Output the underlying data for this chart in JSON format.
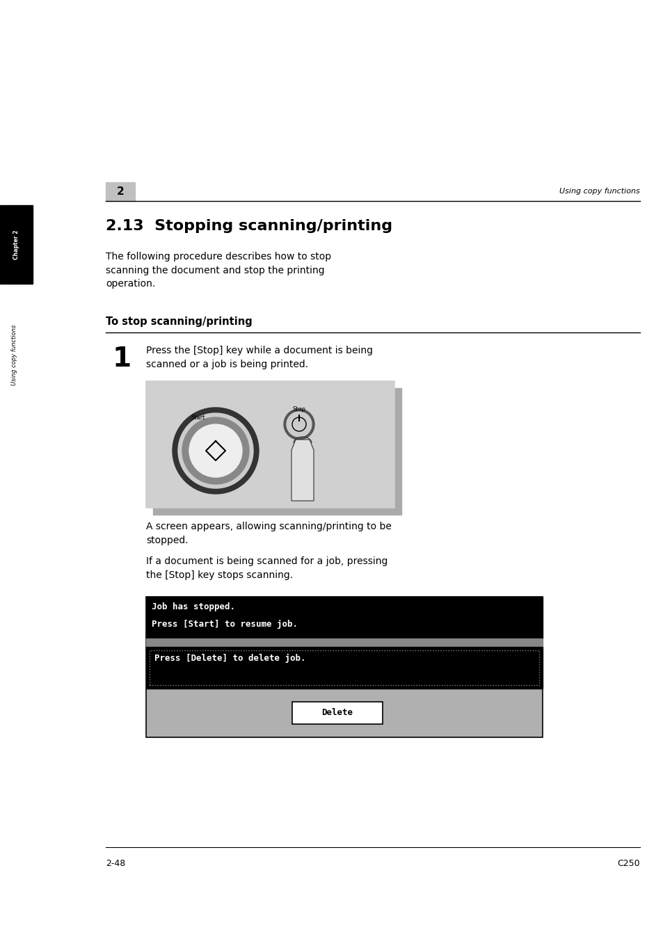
{
  "bg_color": "#ffffff",
  "page_width": 9.54,
  "page_height": 13.5,
  "header_number": "2",
  "header_right": "Using copy functions",
  "section_title": "2.13  Stopping scanning/printing",
  "intro_text": "The following procedure describes how to stop\nscanning the document and stop the printing\noperation.",
  "subsection_title": "To stop scanning/printing",
  "step_number": "1",
  "step_text": "Press the [Stop] key while a document is being\nscanned or a job is being printed.",
  "after_image_text1": "A screen appears, allowing scanning/printing to be\nstopped.",
  "after_image_text2": "If a document is being scanned for a job, pressing\nthe [Stop] key stops scanning.",
  "screen_line1": "Job has stopped.",
  "screen_line2": "Press [Start] to resume job.",
  "screen_line3": "Press [Delete] to delete job.",
  "screen_button": "Delete",
  "chapter_tab_text": "Chapter 2",
  "sidebar_text": "Using copy functions",
  "footer_left": "2-48",
  "footer_right": "C250"
}
